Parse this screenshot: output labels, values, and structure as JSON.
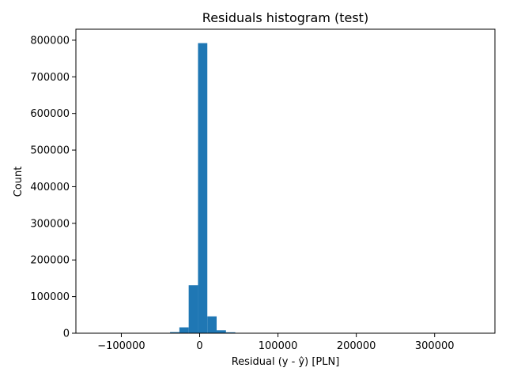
{
  "chart_data": {
    "type": "bar",
    "title": "Residuals histogram (test)",
    "xlabel": "Residual (y - ŷ) [PLN]",
    "ylabel": "Count",
    "xlim": [
      -158000,
      377000
    ],
    "ylim": [
      0,
      830000
    ],
    "bin_width": 11900,
    "bins": [
      {
        "start": -133000,
        "count": 30
      },
      {
        "start": -121100,
        "count": 40
      },
      {
        "start": -109200,
        "count": 60
      },
      {
        "start": -97300,
        "count": 100
      },
      {
        "start": -85400,
        "count": 150
      },
      {
        "start": -73500,
        "count": 250
      },
      {
        "start": -61600,
        "count": 450
      },
      {
        "start": -49700,
        "count": 1000
      },
      {
        "start": -37800,
        "count": 3000
      },
      {
        "start": -25900,
        "count": 16000
      },
      {
        "start": -14000,
        "count": 131000
      },
      {
        "start": -2100,
        "count": 792000
      },
      {
        "start": 9800,
        "count": 46000
      },
      {
        "start": 21700,
        "count": 8000
      },
      {
        "start": 33600,
        "count": 2500
      },
      {
        "start": 45500,
        "count": 900
      },
      {
        "start": 57400,
        "count": 400
      },
      {
        "start": 69300,
        "count": 250
      },
      {
        "start": 81200,
        "count": 150
      },
      {
        "start": 93100,
        "count": 100
      }
    ],
    "x_ticks": [
      -100000,
      0,
      100000,
      200000,
      300000
    ],
    "x_tick_labels": [
      "−100000",
      "0",
      "100000",
      "200000",
      "300000"
    ],
    "y_ticks": [
      0,
      100000,
      200000,
      300000,
      400000,
      500000,
      600000,
      700000,
      800000
    ],
    "y_tick_labels": [
      "0",
      "100000",
      "200000",
      "300000",
      "400000",
      "500000",
      "600000",
      "700000",
      "800000"
    ],
    "grid": false,
    "bar_color": "#1f77b4"
  }
}
